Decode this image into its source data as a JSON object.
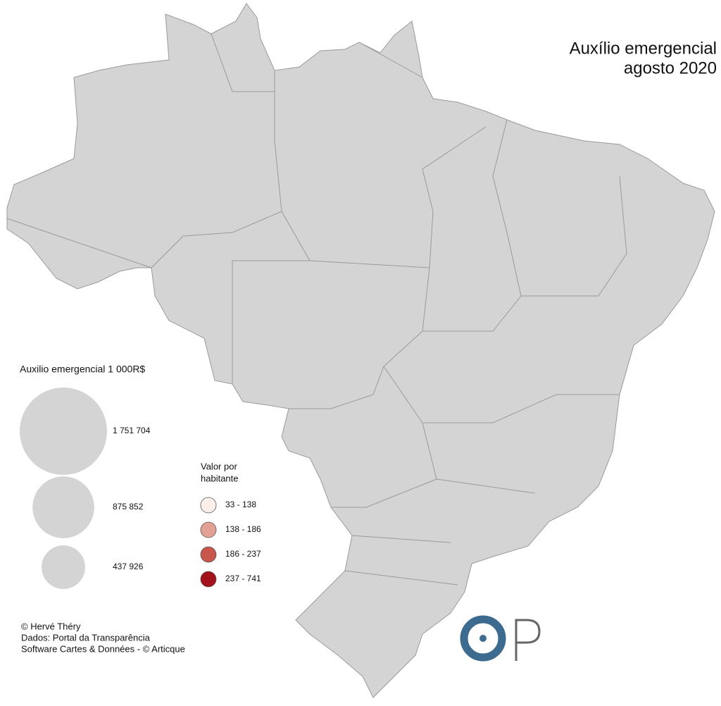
{
  "title_lines": [
    "Auxílio emergencial",
    "agosto 2020"
  ],
  "size_legend": {
    "title": "Auxilio emergencial  1 000R$",
    "values": [
      {
        "value": 1751704,
        "label": "1 751 704"
      },
      {
        "value": 875852,
        "label": "875 852"
      },
      {
        "value": 437926,
        "label": "437 926"
      }
    ],
    "color": "#d4d4d4"
  },
  "color_legend": {
    "title_lines": [
      "Valor por",
      "habitante"
    ],
    "classes": [
      {
        "label": "33 - 138",
        "color": "#fcefea"
      },
      {
        "label": "138 - 186",
        "color": "#e2a194"
      },
      {
        "label": "186 - 237",
        "color": "#c9564b"
      },
      {
        "label": "237 - 741",
        "color": "#a3111a"
      }
    ]
  },
  "credits": [
    "© Hervé Théry",
    "Dados: Portal da Transparência",
    "Software Cartes & Données - © Articque"
  ]
}
